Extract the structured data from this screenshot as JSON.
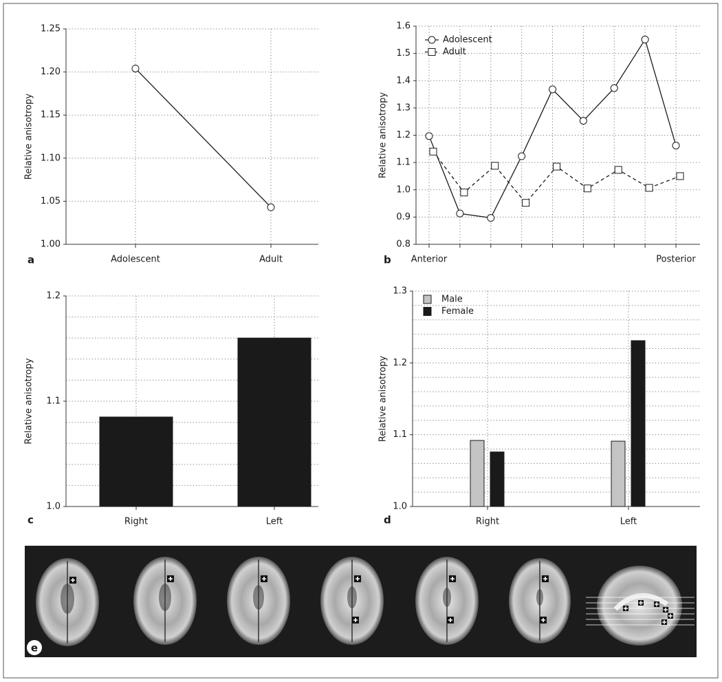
{
  "chart_data": [
    {
      "type": "line",
      "panel": "a",
      "ylabel": "Relative anisotropy",
      "categories": [
        "Adolescent",
        "Adult"
      ],
      "values": [
        1.204,
        1.043
      ],
      "color": "#1a1a1a",
      "marker": "circle",
      "ylim": [
        1.0,
        1.25
      ],
      "yticks": [
        {
          "value": 1.0,
          "label": "1.00"
        },
        {
          "value": 1.05,
          "label": "1.05"
        },
        {
          "value": 1.1,
          "label": "1.10"
        },
        {
          "value": 1.15,
          "label": "1.15"
        },
        {
          "value": 1.2,
          "label": "1.20"
        },
        {
          "value": 1.25,
          "label": "1.25"
        }
      ],
      "grid": true
    },
    {
      "type": "line",
      "panel": "b",
      "ylabel": "Relative anisotropy",
      "categories": [
        "Anterior",
        null,
        null,
        null,
        null,
        null,
        null,
        null,
        "Posterior"
      ],
      "series": [
        {
          "name": "Adolescent",
          "color": "#1a1a1a",
          "marker": "circle",
          "dash": false,
          "values": [
            1.197,
            0.913,
            0.897,
            1.123,
            1.368,
            1.253,
            1.373,
            1.551,
            1.162
          ]
        },
        {
          "name": "Adult",
          "color": "#1a1a1a",
          "marker": "square",
          "dash": true,
          "values": [
            1.14,
            0.99,
            1.088,
            0.952,
            1.085,
            1.005,
            1.073,
            1.007,
            1.05
          ]
        }
      ],
      "ylim": [
        0.8,
        1.6
      ],
      "yticks": [
        0.8,
        0.9,
        {
          "value": 1.0,
          "label": "1.0"
        },
        1.1,
        1.2,
        1.3,
        1.4,
        1.5,
        1.6
      ],
      "grid": true,
      "legend": "upper-left"
    },
    {
      "type": "bar",
      "panel": "c",
      "ylabel": "Relative anisotropy",
      "categories": [
        "Right",
        "Left"
      ],
      "values": [
        1.085,
        1.16
      ],
      "color": "#1a1a1a",
      "ylim": [
        1.0,
        1.2
      ],
      "yticks": [
        {
          "value": 1.0,
          "label": "1.0"
        },
        1.1,
        1.2
      ],
      "minor_yticks": [
        1.02,
        1.04,
        1.06,
        1.08,
        1.12,
        1.14,
        1.16,
        1.18
      ],
      "grid": true
    },
    {
      "type": "bar",
      "panel": "d",
      "ylabel": "Relative anisotropy",
      "categories": [
        "Right",
        "Left"
      ],
      "series": [
        {
          "name": "Male",
          "color": "#c4c4c4",
          "values": [
            1.092,
            1.091
          ]
        },
        {
          "name": "Female",
          "color": "#1a1a1a",
          "values": [
            1.076,
            1.231
          ]
        }
      ],
      "ylim": [
        1.0,
        1.3
      ],
      "yticks": [
        {
          "value": 1.0,
          "label": "1.0"
        },
        1.1,
        1.2,
        1.3
      ],
      "minor_yticks": [
        1.02,
        1.04,
        1.06,
        1.08,
        1.12,
        1.14,
        1.16,
        1.18,
        1.22,
        1.24,
        1.26,
        1.28
      ],
      "grid": true,
      "legend": "upper-left"
    }
  ],
  "image_panel": {
    "label": "e"
  }
}
